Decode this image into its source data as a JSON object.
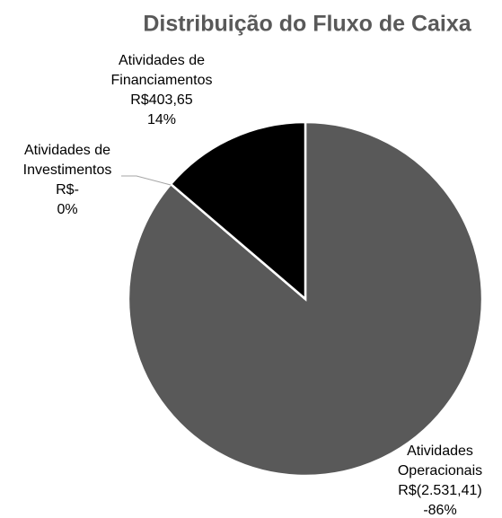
{
  "chart_data": {
    "type": "pie",
    "title": "Distribuição do Fluxo de Caixa",
    "categories": [
      "Atividades\nOperacionais",
      "Atividades de\nInvestimentos",
      "Atividades de\nFinanciamentos"
    ],
    "values": [
      -2531.41,
      0,
      403.65
    ],
    "value_labels": [
      "R$(2.531,41)",
      "R$-",
      "R$403,65"
    ],
    "percents": [
      -86,
      0,
      14
    ],
    "percent_labels": [
      "-86%",
      "0%",
      "14%"
    ],
    "colors": [
      "#595959",
      "#7f7f7f",
      "#000000"
    ]
  }
}
